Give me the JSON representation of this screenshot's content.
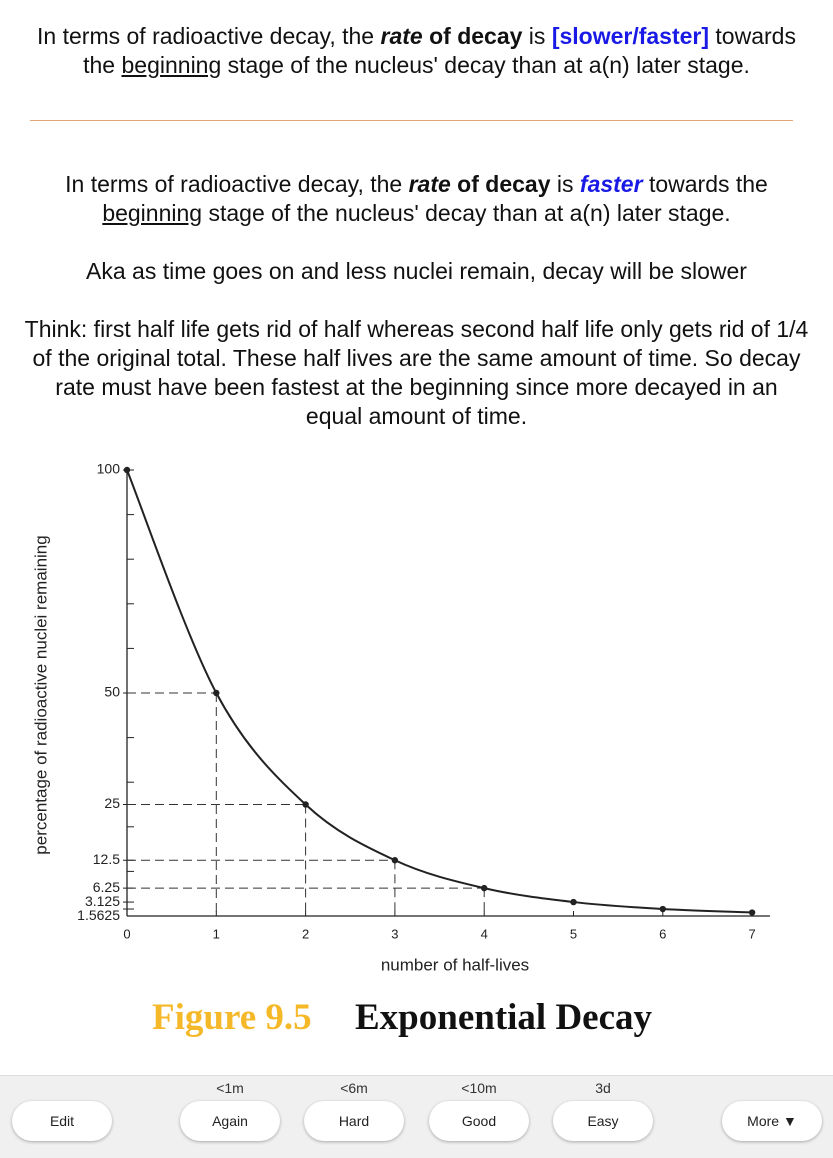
{
  "question": {
    "parts": [
      "In terms of radioactive decay, the ",
      "rate",
      " of decay",
      " is ",
      "[slower/faster]",
      " towards the ",
      "beginning",
      " stage of the nucleus' decay than at a(n) later stage."
    ]
  },
  "answer": {
    "parts": [
      "In terms of radioactive decay, the ",
      "rate",
      " of decay",
      " is ",
      "faster",
      " towards the ",
      "beginning",
      " stage of the nucleus' decay than at a(n) later stage."
    ],
    "paragraphs": [
      "Aka as time goes on and less nuclei remain, decay will be slower",
      "Think: first half life gets rid of half whereas second half life only gets rid of 1/4 of the original total. These half lives are the same amount of time. So decay rate must have been fastest at the beginning since more decayed in an equal amount of time."
    ]
  },
  "chart_data": {
    "type": "line",
    "x": [
      0,
      1,
      2,
      3,
      4,
      5,
      6,
      7
    ],
    "values": [
      100,
      50,
      25,
      12.5,
      6.25,
      3.125,
      1.5625,
      0.78125
    ],
    "color": "#222222",
    "xlabel": "number of half-lives",
    "ylabel": "percentage of radioactive nuclei remaining",
    "xlim": [
      0,
      7.2
    ],
    "ylim": [
      0,
      100
    ],
    "xticks": [
      0,
      1,
      2,
      3,
      4,
      5,
      6,
      7
    ],
    "yticks": [
      100,
      50,
      25,
      12.5,
      6.25,
      3.125,
      1.5625
    ],
    "yminor_ticks": [
      10,
      20,
      30,
      40,
      60,
      70,
      80,
      90
    ]
  },
  "figure": {
    "label": "Figure 9.5",
    "title": "Exponential Decay"
  },
  "intervals": [
    "<1m",
    "<6m",
    "<10m",
    "3d"
  ],
  "buttons": [
    "Edit",
    "Again",
    "Hard",
    "Good",
    "Easy",
    "More ▼"
  ]
}
